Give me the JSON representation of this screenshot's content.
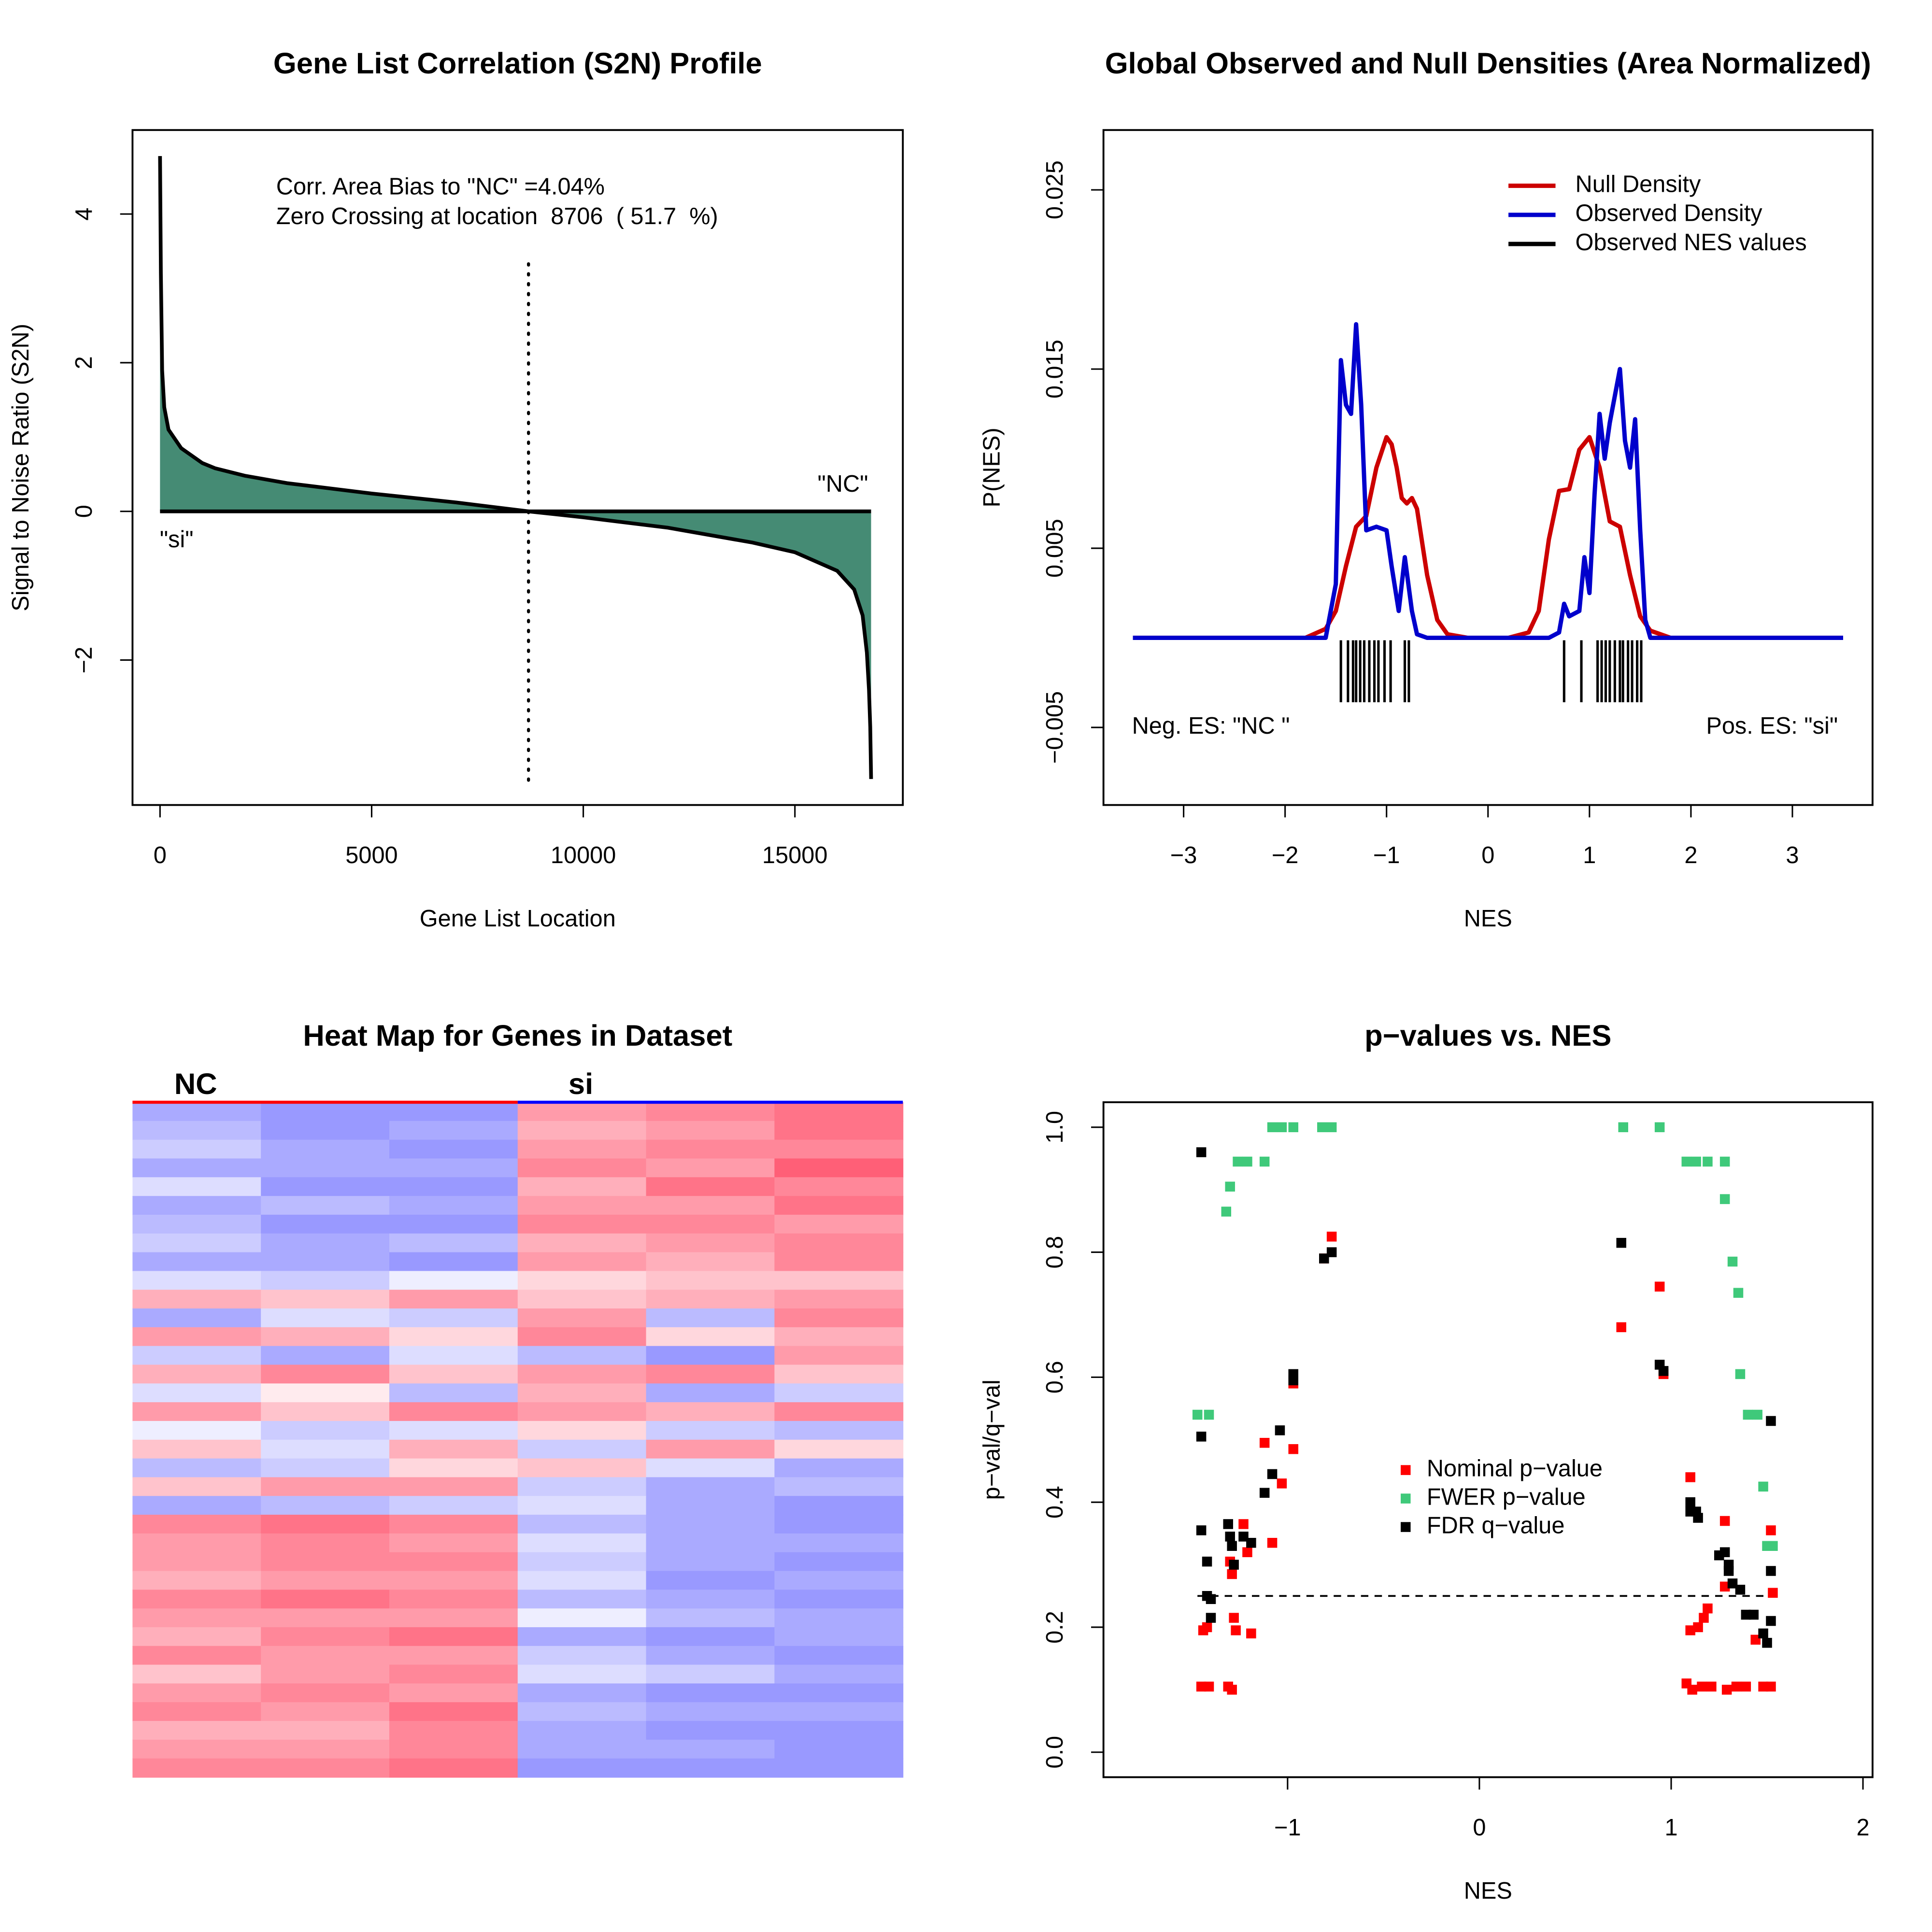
{
  "chart_data": [
    {
      "type": "area",
      "title": "Gene List Correlation (S2N) Profile",
      "xlabel": "Gene List Location",
      "ylabel": "Signal to Noise Ratio (S2N)",
      "annotations": [
        "Corr. Area Bias to \"NC\" =4.04%",
        "Zero Crossing at location  8706  ( 51.7  %)"
      ],
      "left_label": "\"si\"",
      "right_label": "\"NC\"",
      "color": "#458b74",
      "vline": 8706,
      "x": [
        0,
        20,
        50,
        100,
        200,
        500,
        1000,
        1300,
        2000,
        3000,
        5000,
        7000,
        8706,
        10000,
        12000,
        14000,
        15000,
        16000,
        16400,
        16600,
        16700,
        16750,
        16780,
        16800
      ],
      "values": [
        4.78,
        3.2,
        1.9,
        1.4,
        1.1,
        0.85,
        0.65,
        0.58,
        0.48,
        0.38,
        0.24,
        0.12,
        0,
        -0.08,
        -0.22,
        -0.42,
        -0.55,
        -0.8,
        -1.05,
        -1.4,
        -1.9,
        -2.4,
        -2.9,
        -3.6
      ],
      "xlim": [
        -650,
        17550
      ],
      "ylim": [
        -3.95,
        5.13
      ],
      "xticks": [
        0,
        5000,
        10000,
        15000
      ],
      "yticks": [
        {
          "value": -2,
          "label": "−2"
        },
        0,
        2,
        4
      ]
    },
    {
      "type": "density",
      "title": "Global Observed and Null Densities (Area Normalized)",
      "xlabel": "NES",
      "ylabel": "P(NES)",
      "left_note": "Neg. ES: \"NC \"",
      "right_note": "Pos. ES: \"si\"",
      "legend": "topright",
      "series": [
        {
          "name": "Null Density",
          "color": "#cc0000",
          "x": [
            -3.5,
            -1.8,
            -1.6,
            -1.5,
            -1.4,
            -1.3,
            -1.2,
            -1.1,
            -1.0,
            -0.95,
            -0.9,
            -0.85,
            -0.8,
            -0.75,
            -0.7,
            -0.6,
            -0.5,
            -0.4,
            -0.2,
            0.2,
            0.4,
            0.5,
            0.6,
            0.7,
            0.8,
            0.9,
            1.0,
            1.1,
            1.2,
            1.3,
            1.4,
            1.5,
            1.6,
            1.8,
            3.5
          ],
          "values": [
            0,
            0,
            0.0005,
            0.0015,
            0.004,
            0.0062,
            0.0068,
            0.0095,
            0.0112,
            0.0108,
            0.0095,
            0.0078,
            0.0075,
            0.0078,
            0.0072,
            0.0035,
            0.001,
            0.0002,
            0,
            0,
            0.0003,
            0.0015,
            0.0055,
            0.0082,
            0.0083,
            0.0105,
            0.0112,
            0.0095,
            0.0065,
            0.0062,
            0.0035,
            0.0012,
            0.0004,
            0,
            0
          ]
        },
        {
          "name": "Observed Density",
          "color": "#0000cc",
          "x": [
            -3.5,
            -1.6,
            -1.5,
            -1.45,
            -1.4,
            -1.35,
            -1.3,
            -1.25,
            -1.2,
            -1.1,
            -1.0,
            -0.95,
            -0.88,
            -0.82,
            -0.75,
            -0.7,
            -0.6,
            0.6,
            0.7,
            0.75,
            0.8,
            0.9,
            0.95,
            1.0,
            1.05,
            1.1,
            1.15,
            1.2,
            1.3,
            1.35,
            1.4,
            1.45,
            1.5,
            1.55,
            1.6,
            3.5
          ],
          "values": [
            0,
            0,
            0.003,
            0.0155,
            0.013,
            0.0125,
            0.0175,
            0.013,
            0.006,
            0.0062,
            0.006,
            0.004,
            0.0015,
            0.0045,
            0.0015,
            0.0002,
            0,
            0,
            0.0003,
            0.0019,
            0.0012,
            0.0015,
            0.0045,
            0.0025,
            0.008,
            0.0125,
            0.01,
            0.012,
            0.015,
            0.011,
            0.0095,
            0.0122,
            0.006,
            0.001,
            0,
            0
          ]
        },
        {
          "name": "Observed NES values",
          "color": "#000000",
          "values": [
            -1.45,
            -1.38,
            -1.33,
            -1.3,
            -1.26,
            -1.22,
            -1.17,
            -1.12,
            -1.08,
            -1.02,
            -0.96,
            -0.82,
            -0.78,
            0.75,
            0.92,
            1.08,
            1.12,
            1.16,
            1.2,
            1.25,
            1.3,
            1.33,
            1.38,
            1.42,
            1.47,
            1.51
          ]
        }
      ],
      "xlim": [
        -3.79,
        3.79
      ],
      "ylim": [
        -0.00933,
        0.02834
      ],
      "xticks": [
        {
          "value": -3,
          "label": "−3"
        },
        {
          "value": -2,
          "label": "−2"
        },
        {
          "value": -1,
          "label": "−1"
        },
        0,
        1,
        2,
        3
      ],
      "yticks": [
        {
          "value": -0.005,
          "label": "−0.005"
        },
        0.005,
        0.015,
        0.025
      ]
    },
    {
      "type": "heatmap",
      "title": "Heat Map for Genes in Dataset",
      "classes": [
        {
          "name": "NC",
          "color": "#ff0000"
        },
        {
          "name": "si",
          "color": "#0000ff"
        }
      ],
      "values": [
        [
          -0.5,
          -0.6,
          -0.6,
          0.5,
          0.6,
          0.7
        ],
        [
          -0.4,
          -0.6,
          -0.5,
          0.4,
          0.5,
          0.7
        ],
        [
          -0.3,
          -0.5,
          -0.6,
          0.5,
          0.6,
          0.6
        ],
        [
          -0.5,
          -0.5,
          -0.5,
          0.6,
          0.5,
          0.8
        ],
        [
          -0.2,
          -0.6,
          -0.6,
          0.4,
          0.7,
          0.6
        ],
        [
          -0.5,
          -0.4,
          -0.5,
          0.5,
          0.5,
          0.7
        ],
        [
          -0.4,
          -0.6,
          -0.6,
          0.6,
          0.6,
          0.5
        ],
        [
          -0.3,
          -0.5,
          -0.4,
          0.4,
          0.5,
          0.6
        ],
        [
          -0.5,
          -0.5,
          -0.6,
          0.5,
          0.4,
          0.6
        ],
        [
          -0.2,
          -0.3,
          -0.1,
          0.2,
          0.3,
          0.3
        ],
        [
          0.4,
          0.3,
          0.5,
          0.3,
          0.4,
          0.5
        ],
        [
          -0.5,
          -0.2,
          -0.3,
          0.5,
          -0.4,
          0.6
        ],
        [
          0.5,
          0.4,
          0.2,
          0.6,
          0.2,
          0.4
        ],
        [
          -0.3,
          -0.5,
          -0.2,
          -0.4,
          -0.6,
          0.5
        ],
        [
          0.4,
          0.6,
          0.3,
          0.5,
          0.6,
          0.3
        ],
        [
          -0.2,
          0.1,
          -0.4,
          0.4,
          -0.5,
          -0.3
        ],
        [
          0.5,
          0.3,
          0.6,
          0.5,
          0.4,
          0.6
        ],
        [
          -0.1,
          -0.3,
          -0.2,
          0.2,
          -0.3,
          -0.4
        ],
        [
          0.3,
          -0.2,
          0.4,
          -0.3,
          0.5,
          0.2
        ],
        [
          -0.4,
          -0.3,
          0.2,
          0.3,
          -0.2,
          -0.5
        ],
        [
          0.3,
          0.5,
          0.5,
          -0.3,
          -0.5,
          -0.4
        ],
        [
          -0.5,
          -0.4,
          -0.3,
          -0.2,
          -0.5,
          -0.6
        ],
        [
          0.6,
          0.7,
          0.6,
          -0.4,
          -0.5,
          -0.6
        ],
        [
          0.5,
          0.6,
          0.5,
          -0.2,
          -0.5,
          -0.5
        ],
        [
          0.5,
          0.6,
          0.6,
          -0.3,
          -0.5,
          -0.6
        ],
        [
          0.4,
          0.5,
          0.5,
          -0.2,
          -0.6,
          -0.5
        ],
        [
          0.6,
          0.7,
          0.6,
          -0.4,
          -0.5,
          -0.6
        ],
        [
          0.5,
          0.5,
          0.5,
          -0.1,
          -0.4,
          -0.5
        ],
        [
          0.4,
          0.6,
          0.7,
          -0.5,
          -0.6,
          -0.5
        ],
        [
          0.6,
          0.5,
          0.5,
          -0.3,
          -0.5,
          -0.6
        ],
        [
          0.3,
          0.5,
          0.6,
          -0.2,
          -0.3,
          -0.5
        ],
        [
          0.5,
          0.6,
          0.5,
          -0.5,
          -0.6,
          -0.6
        ],
        [
          0.6,
          0.5,
          0.7,
          -0.4,
          -0.5,
          -0.5
        ],
        [
          0.4,
          0.4,
          0.6,
          -0.5,
          -0.6,
          -0.6
        ],
        [
          0.5,
          0.5,
          0.6,
          -0.5,
          -0.5,
          -0.6
        ],
        [
          0.6,
          0.6,
          0.7,
          -0.6,
          -0.6,
          -0.6
        ]
      ]
    },
    {
      "type": "scatter",
      "title": "p−values vs. NES",
      "xlabel": "NES",
      "ylabel": "p−val/q−val",
      "legend": "center",
      "hline": 0.25,
      "series": [
        {
          "name": "Nominal p−value",
          "color": "#ff0000",
          "x": [
            -1.45,
            -1.41,
            -1.31,
            -1.29,
            -1.44,
            -1.42,
            -1.28,
            -1.27,
            -1.19,
            -1.3,
            -1.29,
            -1.23,
            -1.21,
            -1.08,
            -1.12,
            -1.03,
            -0.97,
            -0.97,
            -0.81,
            -0.77,
            0.74,
            0.94,
            0.96,
            1.1,
            1.1,
            1.14,
            1.19,
            1.17,
            1.28,
            1.28,
            1.08,
            1.11,
            1.16,
            1.21,
            1.29,
            1.34,
            1.39,
            1.48,
            1.52,
            1.44,
            1.52,
            1.53
          ],
          "values": [
            0.105,
            0.105,
            0.105,
            0.1,
            0.195,
            0.2,
            0.215,
            0.195,
            0.19,
            0.305,
            0.285,
            0.365,
            0.32,
            0.335,
            0.495,
            0.43,
            0.485,
            0.59,
            0.79,
            0.825,
            0.68,
            0.745,
            0.605,
            0.44,
            0.195,
            0.2,
            0.23,
            0.215,
            0.37,
            0.265,
            0.11,
            0.1,
            0.105,
            0.105,
            0.1,
            0.105,
            0.105,
            0.105,
            0.105,
            0.18,
            0.355,
            0.255
          ]
        },
        {
          "name": "FWER p−value",
          "color": "#3fc97a",
          "x": [
            -1.47,
            -1.41,
            -1.3,
            -1.32,
            -1.26,
            -1.21,
            -1.12,
            -1.08,
            -1.03,
            -0.97,
            -0.82,
            -0.77,
            0.75,
            0.94,
            1.08,
            1.13,
            1.19,
            1.28,
            1.28,
            1.32,
            1.35,
            1.36,
            1.4,
            1.45,
            1.48,
            1.5,
            1.53
          ],
          "values": [
            0.54,
            0.54,
            0.905,
            0.865,
            0.945,
            0.945,
            0.945,
            1.0,
            1.0,
            1.0,
            1.0,
            1.0,
            1.0,
            1.0,
            0.945,
            0.945,
            0.945,
            0.945,
            0.885,
            0.785,
            0.735,
            0.605,
            0.54,
            0.54,
            0.425,
            0.33,
            0.33
          ]
        },
        {
          "name": "FDR q−value",
          "color": "#000000",
          "x": [
            -1.45,
            -1.45,
            -1.45,
            -1.42,
            -1.42,
            -1.4,
            -1.4,
            -1.31,
            -1.3,
            -1.29,
            -1.28,
            -1.23,
            -1.19,
            -1.12,
            -1.08,
            -1.04,
            -0.97,
            -0.97,
            -0.81,
            -0.77,
            0.74,
            0.94,
            0.96,
            1.1,
            1.13,
            1.1,
            1.14,
            1.25,
            1.28,
            1.3,
            1.3,
            1.32,
            1.36,
            1.39,
            1.43,
            1.48,
            1.5,
            1.52,
            1.52,
            1.52
          ],
          "values": [
            0.96,
            0.505,
            0.355,
            0.305,
            0.25,
            0.245,
            0.215,
            0.365,
            0.345,
            0.33,
            0.3,
            0.345,
            0.335,
            0.415,
            0.445,
            0.515,
            0.605,
            0.595,
            0.79,
            0.8,
            0.815,
            0.62,
            0.61,
            0.4,
            0.385,
            0.385,
            0.375,
            0.315,
            0.32,
            0.3,
            0.29,
            0.27,
            0.26,
            0.22,
            0.22,
            0.19,
            0.175,
            0.53,
            0.29,
            0.21
          ]
        }
      ],
      "xlim": [
        -1.96,
        2.05
      ],
      "ylim": [
        -0.04,
        1.04
      ],
      "xticks": [
        {
          "value": -1,
          "label": "−1"
        },
        0,
        1,
        2
      ],
      "yticks": [
        {
          "value": 0,
          "label": "0.0"
        },
        0.2,
        0.4,
        0.6,
        0.8,
        {
          "value": 1,
          "label": "1.0"
        }
      ]
    }
  ]
}
